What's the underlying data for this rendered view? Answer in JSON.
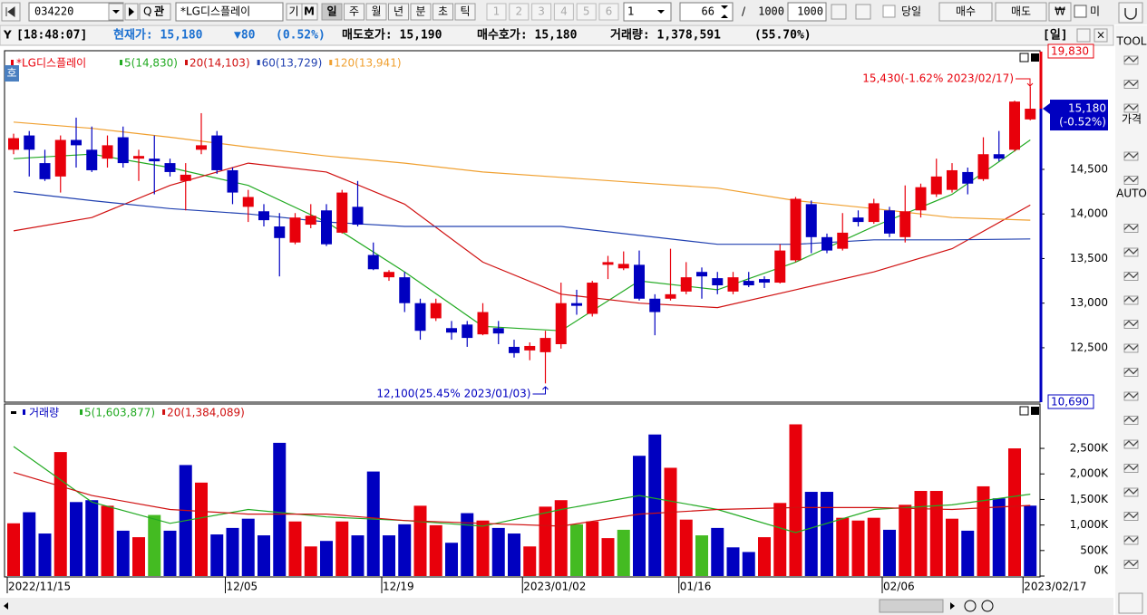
{
  "toolbar": {
    "code": "034220",
    "search": "관",
    "name": "*LG디스플레이",
    "buttons": [
      "기",
      "M"
    ],
    "periods": [
      "일",
      "주",
      "월",
      "년",
      "분",
      "초",
      "틱"
    ],
    "numbers": [
      "1",
      "2",
      "3",
      "4",
      "5",
      "6"
    ],
    "count_select": "1",
    "count": "66",
    "slash": "/",
    "total": "1000",
    "total2": "1000",
    "today": "당일",
    "buy": "매수",
    "sell": "매도",
    "won": "₩",
    "more": "미"
  },
  "info_bar": {
    "time": "[18:48:07]",
    "price": "현재가: 15,180",
    "change": "▼80",
    "change_rate": "(0.52%)",
    "ask": "매도호가: 15,190",
    "bid": "매수호가: 15,180",
    "volume": "거래량: 1,378,591",
    "volume_rate": "(55.70%)",
    "period": "[일]"
  },
  "side_toolbar": {
    "tool": "TOOL",
    "price": "가격",
    "auto": "AUTO"
  },
  "pane_tab": "호",
  "chart_data": [
    {
      "type": "candlestick",
      "name": "*LG디스플레이",
      "up_color": "#e8000b",
      "down_color": "#0000c0",
      "open": [
        14720,
        14880,
        14570,
        14420,
        14830,
        14720,
        14620,
        14860,
        14620,
        14620,
        14570,
        14370,
        14720,
        14880,
        14490,
        14080,
        14030,
        13860,
        13680,
        13880,
        14040,
        13790,
        14080,
        13540,
        13290,
        13290,
        13000,
        12830,
        12720,
        12760,
        12650,
        12720,
        12510,
        12470,
        12450,
        12540,
        13000,
        12880,
        13430,
        13390,
        13430,
        13050,
        13050,
        13130,
        13350,
        13280,
        13130,
        13250,
        13270,
        13230,
        13480,
        14110,
        13740,
        13610,
        13960,
        13910,
        14040,
        13740,
        14040,
        14220,
        14270,
        14470,
        14390,
        14670,
        14720,
        15060
      ],
      "high": [
        14900,
        14930,
        14720,
        14880,
        15080,
        14980,
        14880,
        14980,
        14720,
        14880,
        14620,
        14570,
        15130,
        14930,
        14520,
        14270,
        14110,
        14010,
        14010,
        14110,
        14110,
        14270,
        14370,
        13680,
        13370,
        13350,
        13050,
        13050,
        12800,
        12800,
        13000,
        12800,
        12590,
        12560,
        12690,
        13230,
        13150,
        13250,
        13530,
        13580,
        13590,
        13100,
        13610,
        13460,
        13400,
        13350,
        13350,
        13350,
        13300,
        13660,
        14190,
        14150,
        13780,
        14010,
        14040,
        14170,
        14080,
        14320,
        14340,
        14620,
        14570,
        14520,
        14860,
        14930,
        15270,
        15430
      ],
      "low": [
        14670,
        14420,
        14370,
        14240,
        14520,
        14470,
        14520,
        14520,
        14370,
        14220,
        14420,
        14040,
        14670,
        14450,
        14110,
        13910,
        13860,
        13300,
        13660,
        13840,
        13640,
        13780,
        13860,
        13370,
        13250,
        12900,
        12590,
        12800,
        12590,
        12510,
        12640,
        12540,
        12390,
        12360,
        12100,
        12490,
        12870,
        12850,
        13270,
        13370,
        13030,
        12640,
        13030,
        13100,
        13050,
        13100,
        13100,
        13180,
        13170,
        13220,
        13460,
        13560,
        13560,
        13590,
        13860,
        13890,
        13740,
        13680,
        13960,
        14190,
        14240,
        14220,
        14370,
        14590,
        14700,
        15050
      ],
      "close": [
        14850,
        14720,
        14390,
        14830,
        14770,
        14490,
        14770,
        14570,
        14650,
        14590,
        14470,
        14440,
        14770,
        14490,
        14240,
        14190,
        13930,
        13730,
        13960,
        13980,
        13660,
        14240,
        13880,
        13380,
        13350,
        13000,
        12690,
        13000,
        12670,
        12610,
        12900,
        12660,
        12440,
        12520,
        12610,
        13000,
        12970,
        13230,
        13460,
        13440,
        13050,
        12900,
        13100,
        13290,
        13300,
        13200,
        13290,
        13200,
        13230,
        13590,
        14170,
        13740,
        13590,
        13790,
        13910,
        14120,
        13780,
        14030,
        14300,
        14420,
        14490,
        14340,
        14670,
        14620,
        15260,
        15180
      ],
      "series": [
        {
          "name": "5(14,830)",
          "color": "#22aa22",
          "x": [
            0,
            5,
            10,
            15,
            20,
            25,
            30,
            35,
            40,
            45,
            50,
            55,
            60,
            65
          ],
          "values": [
            14620,
            14670,
            14520,
            14320,
            13910,
            13350,
            12740,
            12690,
            13250,
            13150,
            13460,
            13860,
            14220,
            14830
          ]
        },
        {
          "name": "20(14,103)",
          "color": "#d01010",
          "x": [
            0,
            5,
            10,
            15,
            20,
            25,
            30,
            35,
            40,
            45,
            50,
            55,
            60,
            65
          ],
          "values": [
            13810,
            13960,
            14320,
            14570,
            14470,
            14110,
            13460,
            13100,
            13000,
            12950,
            13150,
            13350,
            13610,
            14100
          ]
        },
        {
          "name": "60(13,729)",
          "color": "#2040b0",
          "x": [
            0,
            5,
            10,
            15,
            20,
            25,
            30,
            35,
            40,
            45,
            50,
            55,
            60,
            65
          ],
          "values": [
            14250,
            14150,
            14060,
            14000,
            13910,
            13860,
            13860,
            13860,
            13760,
            13660,
            13660,
            13710,
            13710,
            13720
          ]
        },
        {
          "name": "120(13,941)",
          "color": "#f0a030",
          "x": [
            0,
            5,
            10,
            15,
            20,
            25,
            30,
            35,
            40,
            45,
            50,
            55,
            60,
            65
          ],
          "values": [
            15030,
            14960,
            14860,
            14750,
            14650,
            14570,
            14470,
            14410,
            14350,
            14290,
            14150,
            14060,
            13960,
            13930
          ]
        }
      ],
      "ylim": [
        11890,
        15820
      ],
      "yticks": [
        {
          "value": 14500,
          "label": "14,500"
        },
        {
          "value": 14000,
          "label": "14,000"
        },
        {
          "value": 13500,
          "label": "13,500"
        },
        {
          "value": 13000,
          "label": "13,000"
        },
        {
          "value": 12500,
          "label": "12,500"
        }
      ],
      "annotations": [
        "15,430(-1.62% 2023/02/17)",
        "12,100(25.45% 2023/01/03)"
      ],
      "upper_limit": "19,830",
      "lower_limit": "10,690",
      "last_label": "15,180",
      "last_change": "(-0.52%)"
    },
    {
      "type": "bar",
      "name": "거래량",
      "categories": [
        "2022/11/15",
        null,
        null,
        null,
        null,
        null,
        null,
        null,
        null,
        null,
        null,
        null,
        null,
        null,
        "12/05",
        null,
        null,
        null,
        null,
        null,
        null,
        null,
        null,
        null,
        "12/19",
        null,
        null,
        null,
        null,
        null,
        null,
        null,
        null,
        "2023/01/02",
        null,
        null,
        null,
        null,
        null,
        null,
        null,
        null,
        null,
        "01/16",
        null,
        null,
        null,
        null,
        null,
        null,
        null,
        null,
        null,
        null,
        null,
        null,
        "02/06",
        null,
        null,
        null,
        null,
        null,
        null,
        null,
        null,
        "2023/02/17"
      ],
      "values": [
        1033,
        1250,
        833,
        2428,
        1449,
        1486,
        1377,
        888,
        761,
        1196,
        888,
        2174,
        1830,
        815,
        942,
        1123,
        797,
        2609,
        1069,
        580,
        688,
        1069,
        797,
        2047,
        797,
        1014,
        1377,
        996,
        652,
        1232,
        1087,
        942,
        833,
        580,
        1359,
        1486,
        1014,
        1069,
        743,
        906,
        2355,
        2772,
        2120,
        1105,
        797,
        942,
        562,
        471,
        761,
        1431,
        2971,
        1649,
        1649,
        1141,
        1087,
        1141,
        906,
        1395,
        1667,
        1667,
        1123,
        888,
        1757,
        1522,
        2500,
        1379
      ],
      "colors": [
        "#e8000b",
        "#0000c0",
        "#0000c0",
        "#e8000b",
        "#0000c0",
        "#0000c0",
        "#e8000b",
        "#0000c0",
        "#e8000b",
        "#44bb22",
        "#0000c0",
        "#0000c0",
        "#e8000b",
        "#0000c0",
        "#0000c0",
        "#0000c0",
        "#0000c0",
        "#0000c0",
        "#e8000b",
        "#e8000b",
        "#0000c0",
        "#e8000b",
        "#0000c0",
        "#0000c0",
        "#0000c0",
        "#0000c0",
        "#e8000b",
        "#e8000b",
        "#0000c0",
        "#0000c0",
        "#e8000b",
        "#0000c0",
        "#0000c0",
        "#e8000b",
        "#e8000b",
        "#e8000b",
        "#44bb22",
        "#e8000b",
        "#e8000b",
        "#44bb22",
        "#0000c0",
        "#0000c0",
        "#e8000b",
        "#e8000b",
        "#44bb22",
        "#0000c0",
        "#0000c0",
        "#0000c0",
        "#e8000b",
        "#e8000b",
        "#e8000b",
        "#0000c0",
        "#0000c0",
        "#e8000b",
        "#e8000b",
        "#e8000b",
        "#0000c0",
        "#e8000b",
        "#e8000b",
        "#e8000b",
        "#e8000b",
        "#0000c0",
        "#e8000b",
        "#0000c0",
        "#e8000b",
        "#0000c0"
      ],
      "series": [
        {
          "name": "5(1,603,877)",
          "color": "#22aa22",
          "x": [
            0,
            5,
            10,
            15,
            20,
            25,
            30,
            35,
            40,
            45,
            50,
            55,
            60,
            65
          ],
          "values": [
            2536,
            1449,
            1033,
            1304,
            1159,
            1087,
            978,
            1304,
            1576,
            1304,
            851,
            1304,
            1395,
            1604
          ]
        },
        {
          "name": "20(1,384,089)",
          "color": "#d01010",
          "x": [
            0,
            5,
            10,
            15,
            20,
            25,
            30,
            35,
            40,
            45,
            50,
            55,
            60,
            65
          ],
          "values": [
            2029,
            1576,
            1304,
            1214,
            1214,
            1087,
            1033,
            978,
            1214,
            1304,
            1341,
            1341,
            1304,
            1384
          ]
        }
      ],
      "ylim": [
        0,
        3370
      ],
      "yticks": [
        {
          "value": 2500,
          "label": "2,500K"
        },
        {
          "value": 2000,
          "label": "2,000K"
        },
        {
          "value": 1500,
          "label": "1,500K"
        },
        {
          "value": 1000,
          "label": "1,000K"
        },
        {
          "value": 500,
          "label": "500K"
        },
        {
          "value": 0,
          "label": "0K"
        }
      ]
    }
  ]
}
